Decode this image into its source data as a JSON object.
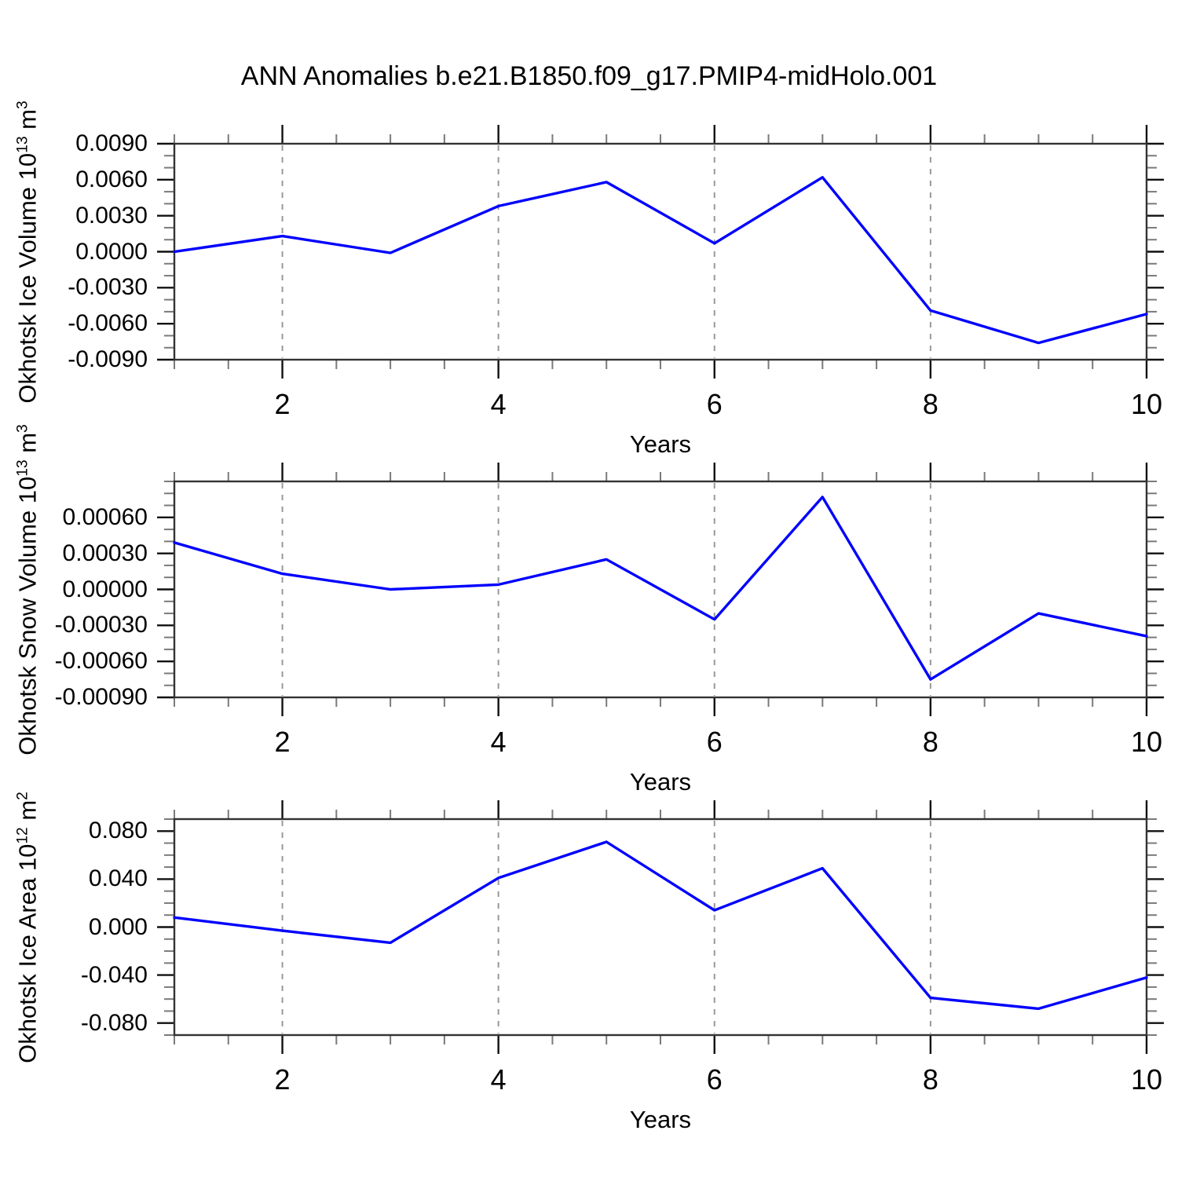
{
  "title": "ANN Anomalies b.e21.B1850.f09_g17.PMIP4-midHolo.001",
  "colors": {
    "background": "#ffffff",
    "line": "#0000ff",
    "frame": "#333333",
    "major_tick": "#111111",
    "minor_tick": "#7a7a7a",
    "gridline": "#999999",
    "text": "#000000"
  },
  "chart_data": [
    {
      "type": "line",
      "name": "okhotsk-ice-volume",
      "ylabel": "Okhotsk Ice Volume 10^13 m^3",
      "xlabel": "Years",
      "x": [
        1,
        2,
        3,
        4,
        5,
        6,
        7,
        8,
        9,
        10
      ],
      "values": [
        0.0,
        0.0013,
        -0.0001,
        0.0038,
        0.0058,
        0.0007,
        0.0062,
        -0.0049,
        -0.0076,
        -0.0052
      ],
      "xlim": [
        1,
        10
      ],
      "ylim": [
        -0.009,
        0.009
      ],
      "ytick_values": [
        0.009,
        0.006,
        0.003,
        0.0,
        -0.003,
        -0.006,
        -0.009
      ],
      "ytick_labels": [
        "0.0090",
        "0.0060",
        "0.0030",
        "0.0000",
        "-0.0030",
        "-0.0060",
        "-0.0090"
      ],
      "yminor_step": 0.001,
      "xtick_values": [
        2,
        4,
        6,
        8,
        10
      ],
      "xtick_labels": [
        "2",
        "4",
        "6",
        "8",
        "10"
      ],
      "xminor_step": 0.5,
      "dashed_gridlines_x": [
        2,
        4,
        6,
        8
      ],
      "grid": "off",
      "legend": "none"
    },
    {
      "type": "line",
      "name": "okhotsk-snow-volume",
      "ylabel": "Okhotsk Snow Volume 10^13 m^3",
      "xlabel": "Years",
      "x": [
        1,
        2,
        3,
        4,
        5,
        6,
        7,
        8,
        9,
        10
      ],
      "values": [
        0.00039,
        0.00013,
        0.0,
        4e-05,
        0.00025,
        -0.00025,
        0.00077,
        -0.00075,
        -0.0002,
        -0.00039
      ],
      "xlim": [
        1,
        10
      ],
      "ylim": [
        -0.0009,
        0.0009
      ],
      "ytick_values": [
        0.0006,
        0.0003,
        0.0,
        -0.0003,
        -0.0006,
        -0.0009
      ],
      "ytick_labels": [
        "0.00060",
        "0.00030",
        "0.00000",
        "-0.00030",
        "-0.00060",
        "-0.00090"
      ],
      "yminor_step": 0.0001,
      "xtick_values": [
        2,
        4,
        6,
        8,
        10
      ],
      "xtick_labels": [
        "2",
        "4",
        "6",
        "8",
        "10"
      ],
      "xminor_step": 0.5,
      "dashed_gridlines_x": [
        2,
        4,
        6,
        8
      ],
      "grid": "off",
      "legend": "none"
    },
    {
      "type": "line",
      "name": "okhotsk-ice-area",
      "ylabel": "Okhotsk Ice Area 10^12 m^2",
      "xlabel": "Years",
      "x": [
        1,
        2,
        3,
        4,
        5,
        6,
        7,
        8,
        9,
        10
      ],
      "values": [
        0.008,
        -0.003,
        -0.013,
        0.041,
        0.071,
        0.014,
        0.049,
        -0.059,
        -0.068,
        -0.042
      ],
      "xlim": [
        1,
        10
      ],
      "ylim": [
        -0.09,
        0.09
      ],
      "ytick_values": [
        0.08,
        0.04,
        0.0,
        -0.04,
        -0.08
      ],
      "ytick_labels": [
        "0.080",
        "0.040",
        "0.000",
        "-0.040",
        "-0.080"
      ],
      "yminor_step": 0.01,
      "xtick_values": [
        2,
        4,
        6,
        8,
        10
      ],
      "xtick_labels": [
        "2",
        "4",
        "6",
        "8",
        "10"
      ],
      "xminor_step": 0.5,
      "dashed_gridlines_x": [
        2,
        4,
        6,
        8
      ],
      "grid": "off",
      "legend": "none"
    }
  ]
}
